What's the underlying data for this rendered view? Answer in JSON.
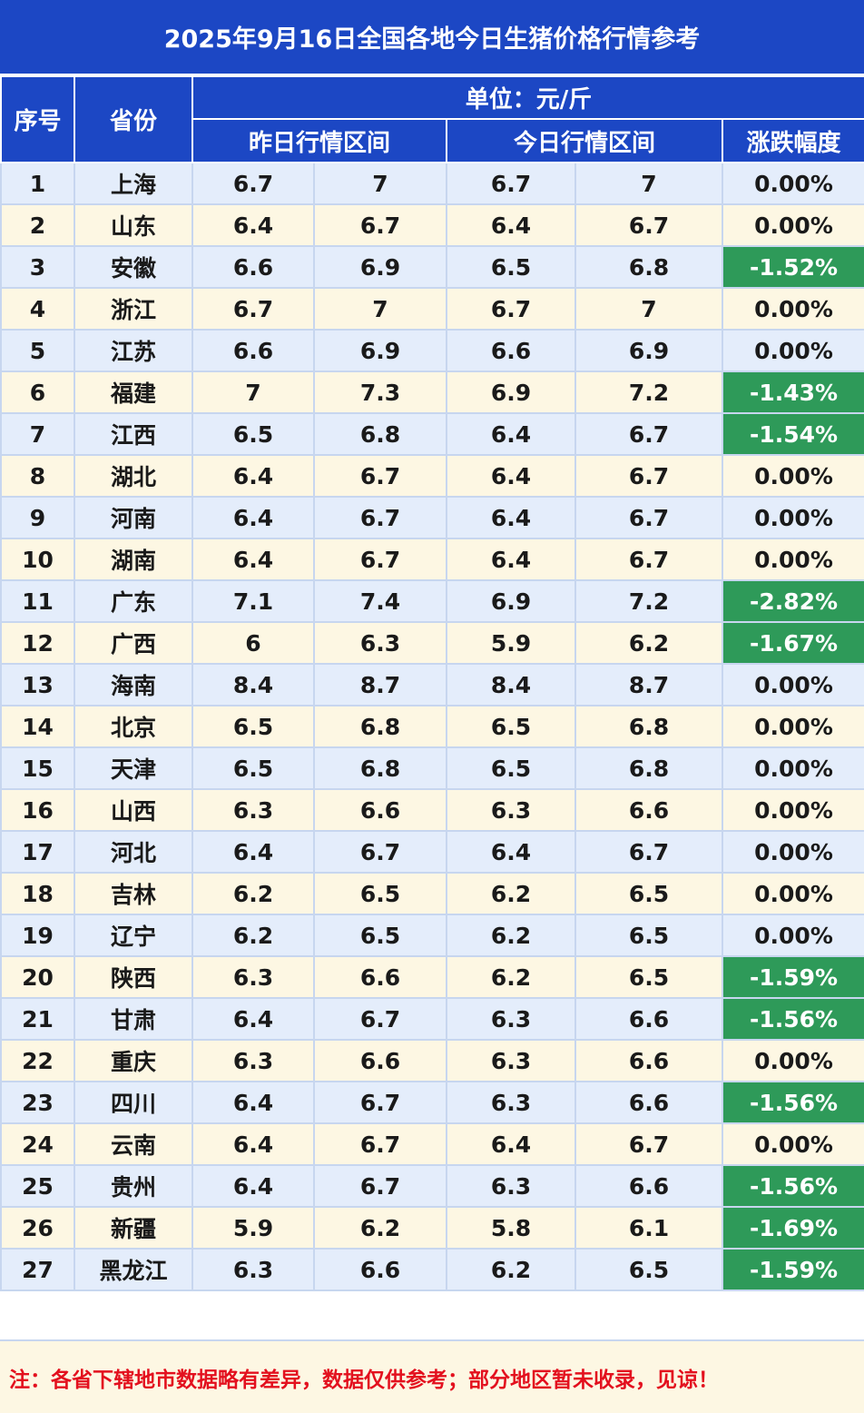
{
  "title": "2025年9月16日全国各地今日生猪价格行情参考",
  "headers": {
    "index": "序号",
    "province": "省份",
    "unit": "单位：元/斤",
    "yesterday_range": "昨日行情区间",
    "today_range": "今日行情区间",
    "change": "涨跌幅度"
  },
  "rows": [
    {
      "no": "1",
      "province": "上海",
      "y_low": "6.7",
      "y_high": "7",
      "t_low": "6.7",
      "t_high": "7",
      "change": "0.00%",
      "down": false
    },
    {
      "no": "2",
      "province": "山东",
      "y_low": "6.4",
      "y_high": "6.7",
      "t_low": "6.4",
      "t_high": "6.7",
      "change": "0.00%",
      "down": false
    },
    {
      "no": "3",
      "province": "安徽",
      "y_low": "6.6",
      "y_high": "6.9",
      "t_low": "6.5",
      "t_high": "6.8",
      "change": "-1.52%",
      "down": true
    },
    {
      "no": "4",
      "province": "浙江",
      "y_low": "6.7",
      "y_high": "7",
      "t_low": "6.7",
      "t_high": "7",
      "change": "0.00%",
      "down": false
    },
    {
      "no": "5",
      "province": "江苏",
      "y_low": "6.6",
      "y_high": "6.9",
      "t_low": "6.6",
      "t_high": "6.9",
      "change": "0.00%",
      "down": false
    },
    {
      "no": "6",
      "province": "福建",
      "y_low": "7",
      "y_high": "7.3",
      "t_low": "6.9",
      "t_high": "7.2",
      "change": "-1.43%",
      "down": true
    },
    {
      "no": "7",
      "province": "江西",
      "y_low": "6.5",
      "y_high": "6.8",
      "t_low": "6.4",
      "t_high": "6.7",
      "change": "-1.54%",
      "down": true
    },
    {
      "no": "8",
      "province": "湖北",
      "y_low": "6.4",
      "y_high": "6.7",
      "t_low": "6.4",
      "t_high": "6.7",
      "change": "0.00%",
      "down": false
    },
    {
      "no": "9",
      "province": "河南",
      "y_low": "6.4",
      "y_high": "6.7",
      "t_low": "6.4",
      "t_high": "6.7",
      "change": "0.00%",
      "down": false
    },
    {
      "no": "10",
      "province": "湖南",
      "y_low": "6.4",
      "y_high": "6.7",
      "t_low": "6.4",
      "t_high": "6.7",
      "change": "0.00%",
      "down": false
    },
    {
      "no": "11",
      "province": "广东",
      "y_low": "7.1",
      "y_high": "7.4",
      "t_low": "6.9",
      "t_high": "7.2",
      "change": "-2.82%",
      "down": true
    },
    {
      "no": "12",
      "province": "广西",
      "y_low": "6",
      "y_high": "6.3",
      "t_low": "5.9",
      "t_high": "6.2",
      "change": "-1.67%",
      "down": true
    },
    {
      "no": "13",
      "province": "海南",
      "y_low": "8.4",
      "y_high": "8.7",
      "t_low": "8.4",
      "t_high": "8.7",
      "change": "0.00%",
      "down": false
    },
    {
      "no": "14",
      "province": "北京",
      "y_low": "6.5",
      "y_high": "6.8",
      "t_low": "6.5",
      "t_high": "6.8",
      "change": "0.00%",
      "down": false
    },
    {
      "no": "15",
      "province": "天津",
      "y_low": "6.5",
      "y_high": "6.8",
      "t_low": "6.5",
      "t_high": "6.8",
      "change": "0.00%",
      "down": false
    },
    {
      "no": "16",
      "province": "山西",
      "y_low": "6.3",
      "y_high": "6.6",
      "t_low": "6.3",
      "t_high": "6.6",
      "change": "0.00%",
      "down": false
    },
    {
      "no": "17",
      "province": "河北",
      "y_low": "6.4",
      "y_high": "6.7",
      "t_low": "6.4",
      "t_high": "6.7",
      "change": "0.00%",
      "down": false
    },
    {
      "no": "18",
      "province": "吉林",
      "y_low": "6.2",
      "y_high": "6.5",
      "t_low": "6.2",
      "t_high": "6.5",
      "change": "0.00%",
      "down": false
    },
    {
      "no": "19",
      "province": "辽宁",
      "y_low": "6.2",
      "y_high": "6.5",
      "t_low": "6.2",
      "t_high": "6.5",
      "change": "0.00%",
      "down": false
    },
    {
      "no": "20",
      "province": "陕西",
      "y_low": "6.3",
      "y_high": "6.6",
      "t_low": "6.2",
      "t_high": "6.5",
      "change": "-1.59%",
      "down": true
    },
    {
      "no": "21",
      "province": "甘肃",
      "y_low": "6.4",
      "y_high": "6.7",
      "t_low": "6.3",
      "t_high": "6.6",
      "change": "-1.56%",
      "down": true
    },
    {
      "no": "22",
      "province": "重庆",
      "y_low": "6.3",
      "y_high": "6.6",
      "t_low": "6.3",
      "t_high": "6.6",
      "change": "0.00%",
      "down": false
    },
    {
      "no": "23",
      "province": "四川",
      "y_low": "6.4",
      "y_high": "6.7",
      "t_low": "6.3",
      "t_high": "6.6",
      "change": "-1.56%",
      "down": true
    },
    {
      "no": "24",
      "province": "云南",
      "y_low": "6.4",
      "y_high": "6.7",
      "t_low": "6.4",
      "t_high": "6.7",
      "change": "0.00%",
      "down": false
    },
    {
      "no": "25",
      "province": "贵州",
      "y_low": "6.4",
      "y_high": "6.7",
      "t_low": "6.3",
      "t_high": "6.6",
      "change": "-1.56%",
      "down": true
    },
    {
      "no": "26",
      "province": "新疆",
      "y_low": "5.9",
      "y_high": "6.2",
      "t_low": "5.8",
      "t_high": "6.1",
      "change": "-1.69%",
      "down": true
    },
    {
      "no": "27",
      "province": "黑龙江",
      "y_low": "6.3",
      "y_high": "6.6",
      "t_low": "6.2",
      "t_high": "6.5",
      "change": "-1.59%",
      "down": true
    }
  ],
  "note": "注：各省下辖地市数据略有差异，数据仅供参考；部分地区暂未收录，见谅！",
  "colors": {
    "header_bg": "#1c47c4",
    "row_blue": "#e4edfb",
    "row_cream": "#fdf7e3",
    "decline_green": "#2e9a59",
    "note_red": "#e3101e"
  }
}
